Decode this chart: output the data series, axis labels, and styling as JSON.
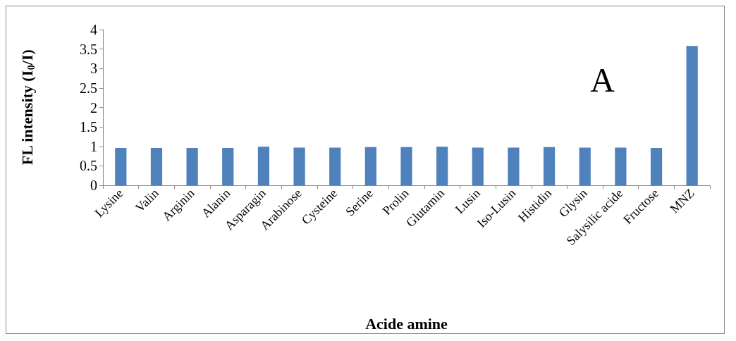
{
  "chart_data": {
    "type": "bar",
    "xlabel": "Acide amine",
    "ylabel": "FL intensity (I$_{0}$/I)",
    "annotations": [
      "A"
    ],
    "categories": [
      "Lysine",
      "Valin",
      "Arginin",
      "Alanin",
      "Asparagin",
      "Arabinose",
      "Cysteine",
      "Serine",
      "Prolin",
      "Glutamin",
      "Lusin",
      "Iso-Lusin",
      "Histidin",
      "Glysin",
      "Salysilic acide",
      "Fructose",
      "MNZ"
    ],
    "values": [
      0.96,
      0.96,
      0.96,
      0.96,
      0.99,
      0.97,
      0.97,
      0.98,
      0.98,
      0.99,
      0.97,
      0.97,
      0.98,
      0.97,
      0.97,
      0.96,
      3.58
    ],
    "color": "#4f81bd",
    "ylim": [
      0,
      4
    ],
    "yticks": [
      0,
      0.5,
      1,
      1.5,
      2,
      2.5,
      3,
      3.5,
      4
    ],
    "grid": false
  }
}
